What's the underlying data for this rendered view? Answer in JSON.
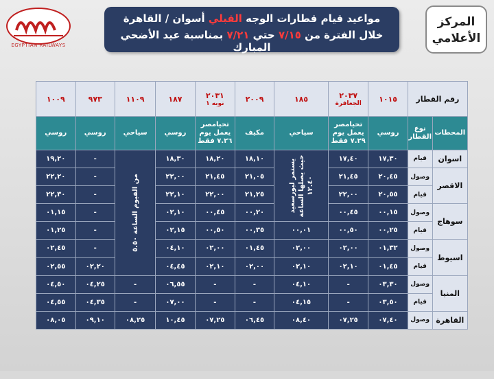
{
  "logo": {
    "caption": "EGYPTIAN RAILWAYS"
  },
  "title": {
    "line1_pre": "مواعيد قيام قطارات الوجه ",
    "line1_red": "القبلي",
    "line1_post": " أسوان / القاهرة",
    "line2_pre": "خلال الفترة من ",
    "line2_red1": "٧/١٥",
    "line2_mid": " حتي ",
    "line2_red2": "٧/٢١",
    "line2_post": " بمناسبة عيد الأضحي المبارك"
  },
  "center": {
    "line1": "المركز",
    "line2": "الأعلامي"
  },
  "table": {
    "header_train": "رقم القطار",
    "header_stations": "المحطات",
    "header_type": "نوع القطار",
    "trains": [
      {
        "num": "١٠١٥",
        "sub": ""
      },
      {
        "num": "٢٠٣٧",
        "sub": "الجعافرة"
      },
      {
        "num": "١٨٥",
        "sub": ""
      },
      {
        "num": "٢٠٠٩",
        "sub": ""
      },
      {
        "num": "٢٠٣١",
        "sub": "نوبه ١"
      },
      {
        "num": "١٨٧",
        "sub": ""
      },
      {
        "num": "١١٠٩",
        "sub": ""
      },
      {
        "num": "٩٧٣",
        "sub": ""
      },
      {
        "num": "١٠٠٩",
        "sub": ""
      }
    ],
    "types": [
      "روسي",
      "تحيامصر يعمل يوم ٧.٢٩ فقط",
      "سياحي",
      "مكيف",
      "تحيامصر يعمل يوم ٧.٢٦ فقط",
      "روسي",
      "سياحي",
      "روسي",
      "روسي"
    ],
    "merged_185": "يستمر لبورسعيد حيث يصلها الساعة ١٢.٤٠",
    "merged_1109": "من الفيوم الساعة ٥.٥٠",
    "rows": [
      {
        "station": "اسوان",
        "kind": "قيام",
        "cells": [
          "١٧,٣٠",
          "١٧,٤٠",
          null,
          "١٨,١٠",
          "١٨,٢٠",
          "١٨,٣٠",
          null,
          "-",
          "١٩,٢٠"
        ]
      },
      {
        "station": "الاقصر",
        "kind": "وصول",
        "cells": [
          "٢٠,٤٥",
          "٢١,٤٥",
          null,
          "٢١,٠٥",
          "٢١,٤٥",
          "٢٢,٠٠",
          null,
          "-",
          "٢٢,٢٠"
        ]
      },
      {
        "station": "",
        "kind": "قيام",
        "cells": [
          "٢٠,٥٥",
          "٢٢,٠٠",
          null,
          "٢١,٢٥",
          "٢٢,٠٠",
          "٢٢,١٠",
          null,
          "-",
          "٢٢,٣٠"
        ]
      },
      {
        "station": "سوهاج",
        "kind": "وصول",
        "cells": [
          "٠٠,١٥",
          "٠٠,٤٥",
          null,
          "٠٠,٢٠",
          "٠٠,٤٥",
          "٠٢,١٠",
          null,
          "-",
          "٠١,١٥"
        ]
      },
      {
        "station": "",
        "kind": "قيام",
        "cells": [
          "٠٠,٢٥",
          "٠٠,٥٠",
          "٠٠,٠١",
          "٠٠,٣٥",
          "٠٠,٥٠",
          "٠٢,١٥",
          null,
          "-",
          "٠١,٢٥"
        ]
      },
      {
        "station": "اسيوط",
        "kind": "وصول",
        "cells": [
          "٠١,٣٢",
          "٠٢,٠٠",
          "٠٢,٠٠",
          "٠١,٤٥",
          "٠٢,٠٠",
          "٠٤,١٠",
          null,
          "-",
          "٠٢,٤٥"
        ]
      },
      {
        "station": "",
        "kind": "قيام",
        "cells": [
          "٠١,٤٥",
          "٠٢,١٠",
          "٠٢,١٠",
          "٠٢,٠٠",
          "٠٢,١٠",
          "٠٤,٤٥",
          null,
          "٠٢,٢٠",
          "٠٢,٥٥"
        ]
      },
      {
        "station": "المنيا",
        "kind": "وصول",
        "cells": [
          "٠٣,٣٠",
          "-",
          "٠٤,١٠",
          "-",
          "-",
          "٠٦,٥٥",
          "-",
          "٠٤,٢٥",
          "٠٤,٥٠"
        ]
      },
      {
        "station": "",
        "kind": "قيام",
        "cells": [
          "٠٣,٥٠",
          "-",
          "٠٤,١٥",
          "-",
          "-",
          "٠٧,٠٠",
          "-",
          "٠٤,٣٥",
          "٠٤,٥٥"
        ]
      },
      {
        "station": "القاهرة",
        "kind": "وصول",
        "cells": [
          "٠٧,٤٠",
          "٠٧,٢٥",
          "٠٨,٤٠",
          "٠٦,٤٥",
          "٠٧,٢٥",
          "١٠,٤٥",
          "٠٨,٢٥",
          "٠٩,١٠",
          "٠٨,٠٥"
        ]
      }
    ]
  },
  "colors": {
    "navy": "#2b3d63",
    "teal": "#2d8a93",
    "red": "#c01010"
  }
}
